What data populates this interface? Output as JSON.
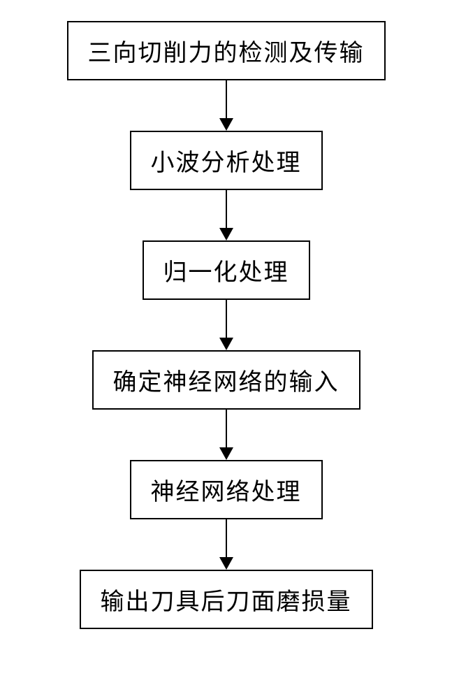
{
  "flowchart": {
    "type": "flowchart",
    "direction": "vertical",
    "background_color": "#ffffff",
    "box_border_color": "#000000",
    "box_border_width": 2,
    "box_background_color": "#ffffff",
    "text_color": "#000000",
    "font_family": "KaiTi",
    "font_size": 34,
    "arrow_color": "#000000",
    "arrow_line_width": 2,
    "arrow_head_width": 20,
    "arrow_head_height": 18,
    "arrow_gap_height": 72,
    "box_padding_vertical": 16,
    "box_padding_horizontal": 28,
    "nodes": [
      {
        "id": "step1",
        "label": "三向切削力的检测及传输"
      },
      {
        "id": "step2",
        "label": "小波分析处理"
      },
      {
        "id": "step3",
        "label": "归一化处理"
      },
      {
        "id": "step4",
        "label": "确定神经网络的输入"
      },
      {
        "id": "step5",
        "label": "神经网络处理"
      },
      {
        "id": "step6",
        "label": "输出刀具后刀面磨损量"
      }
    ],
    "edges": [
      {
        "from": "step1",
        "to": "step2"
      },
      {
        "from": "step2",
        "to": "step3"
      },
      {
        "from": "step3",
        "to": "step4"
      },
      {
        "from": "step4",
        "to": "step5"
      },
      {
        "from": "step5",
        "to": "step6"
      }
    ]
  }
}
